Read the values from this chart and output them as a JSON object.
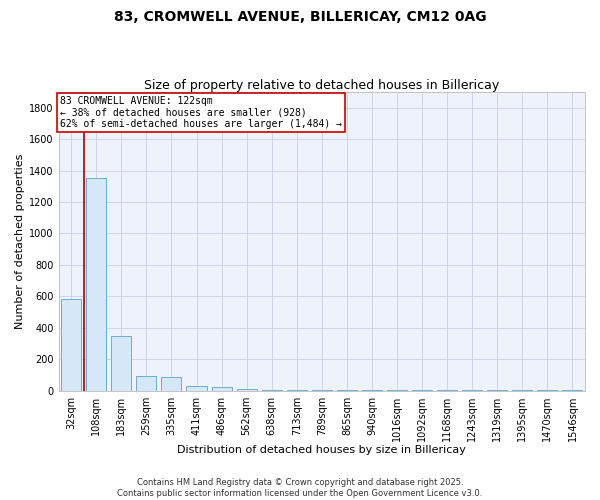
{
  "title": "83, CROMWELL AVENUE, BILLERICAY, CM12 0AG",
  "subtitle": "Size of property relative to detached houses in Billericay",
  "xlabel": "Distribution of detached houses by size in Billericay",
  "ylabel": "Number of detached properties",
  "categories": [
    "32sqm",
    "108sqm",
    "183sqm",
    "259sqm",
    "335sqm",
    "411sqm",
    "486sqm",
    "562sqm",
    "638sqm",
    "713sqm",
    "789sqm",
    "865sqm",
    "940sqm",
    "1016sqm",
    "1092sqm",
    "1168sqm",
    "1243sqm",
    "1319sqm",
    "1395sqm",
    "1470sqm",
    "1546sqm"
  ],
  "values": [
    580,
    1350,
    350,
    95,
    88,
    28,
    22,
    10,
    5,
    3,
    2,
    1,
    1,
    1,
    1,
    1,
    1,
    1,
    1,
    1,
    1
  ],
  "bar_color": "#d6e8f7",
  "bar_edge_color": "#6aaed6",
  "grid_color": "#c8d0e8",
  "bg_color": "#edf2fb",
  "property_line_x": 0.5,
  "property_line_color": "#aa0000",
  "annotation_text": "83 CROMWELL AVENUE: 122sqm\n← 38% of detached houses are smaller (928)\n62% of semi-detached houses are larger (1,484) →",
  "annotation_box_color": "#cc0000",
  "ylim": [
    0,
    1900
  ],
  "yticks": [
    0,
    200,
    400,
    600,
    800,
    1000,
    1200,
    1400,
    1600,
    1800
  ],
  "footnote": "Contains HM Land Registry data © Crown copyright and database right 2025.\nContains public sector information licensed under the Open Government Licence v3.0.",
  "title_fontsize": 10,
  "subtitle_fontsize": 9,
  "xlabel_fontsize": 8,
  "ylabel_fontsize": 8,
  "tick_fontsize": 7,
  "annot_fontsize": 7,
  "footnote_fontsize": 6
}
